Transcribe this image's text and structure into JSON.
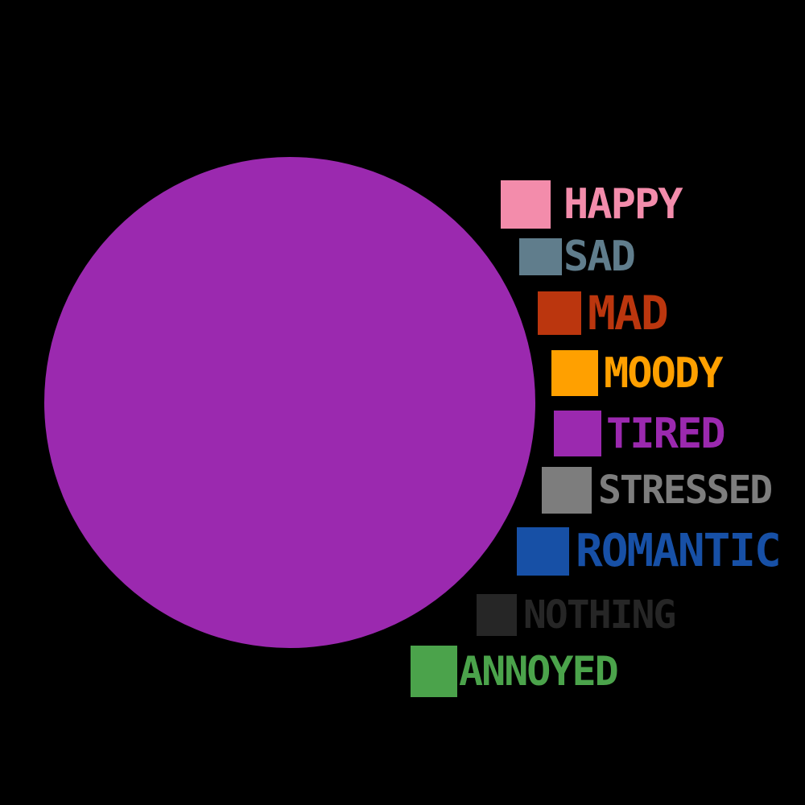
{
  "background": "#000000",
  "pie": {
    "fill_category": "TIRED",
    "fill_color": "#9B29AF"
  },
  "legend": {
    "items": [
      {
        "label": "HAPPY",
        "color": "#F38CAB"
      },
      {
        "label": "SAD",
        "color": "#607D8C"
      },
      {
        "label": "MAD",
        "color": "#BB360E"
      },
      {
        "label": "MOODY",
        "color": "#FFA000"
      },
      {
        "label": "TIRED",
        "color": "#9B29AF"
      },
      {
        "label": "STRESSED",
        "color": "#7D7D7D"
      },
      {
        "label": "ROMANTIC",
        "color": "#1750A6"
      },
      {
        "label": "NOTHING",
        "color": "#262626"
      },
      {
        "label": "ANNOYED",
        "color": "#4BA34B"
      }
    ]
  },
  "chart_data": {
    "type": "pie",
    "title": "",
    "categories": [
      "HAPPY",
      "SAD",
      "MAD",
      "MOODY",
      "TIRED",
      "STRESSED",
      "ROMANTIC",
      "NOTHING",
      "ANNOYED"
    ],
    "values": [
      0,
      0,
      0,
      0,
      100,
      0,
      0,
      0,
      0
    ],
    "colors": [
      "#F38CAB",
      "#607D8C",
      "#BB360E",
      "#FFA000",
      "#9B29AF",
      "#7D7D7D",
      "#1750A6",
      "#262626",
      "#4BA34B"
    ],
    "legend_position": "right",
    "dominant_slice": "TIRED",
    "notes": "Full circle rendered entirely in the TIRED color"
  }
}
